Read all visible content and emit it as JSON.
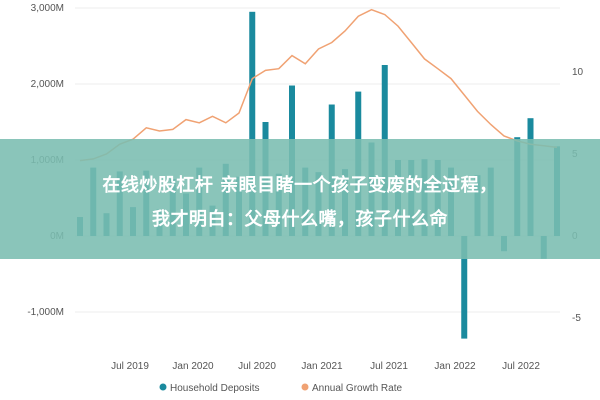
{
  "overlay": {
    "line1": "在线炒股杠杆 亲眼目睹一个孩子变废的全过程，",
    "line2": "我才明白：父母什么嘴，孩子什么命"
  },
  "chart_data": {
    "type": "bar",
    "colors": {
      "bar": "#1a8a9e",
      "line": "#f0a273"
    },
    "x_ticks": [
      "Jul 2019",
      "Jan 2020",
      "Jul 2020",
      "Jan 2021",
      "Jul 2021",
      "Jan 2022",
      "Jul 2022"
    ],
    "y_left_ticks": [
      "3,000M",
      "2,000M",
      "1,000M",
      "0M",
      "-1,000M"
    ],
    "y_right_ticks": [
      "10",
      "5",
      "0",
      "-5"
    ],
    "ylim_left": [
      -1300,
      3100
    ],
    "ylim_right": [
      -8,
      15
    ],
    "series": [
      {
        "name": "Household Deposits",
        "axis": "left",
        "values": [
          250,
          900,
          300,
          850,
          380,
          860,
          350,
          750,
          560,
          900,
          400,
          950,
          780,
          2950,
          1500,
          820,
          1980,
          900,
          840,
          1730,
          880,
          1900,
          1230,
          2250,
          1000,
          1000,
          1010,
          1000,
          900,
          -1350,
          800,
          900,
          -200,
          1300,
          1550,
          -300,
          1180
        ]
      },
      {
        "name": "Annual Growth Rate",
        "axis": "right",
        "values": [
          4.6,
          4.7,
          5.0,
          5.6,
          5.9,
          6.6,
          6.4,
          6.5,
          7.1,
          6.9,
          7.3,
          6.9,
          7.5,
          9.6,
          10.1,
          10.2,
          11.0,
          10.5,
          11.4,
          11.8,
          12.5,
          13.4,
          13.8,
          13.5,
          12.8,
          11.8,
          10.8,
          10.2,
          9.6,
          8.6,
          7.6,
          6.8,
          6.1,
          5.8,
          5.6,
          5.5,
          5.4
        ]
      }
    ],
    "legend": "bottom"
  }
}
